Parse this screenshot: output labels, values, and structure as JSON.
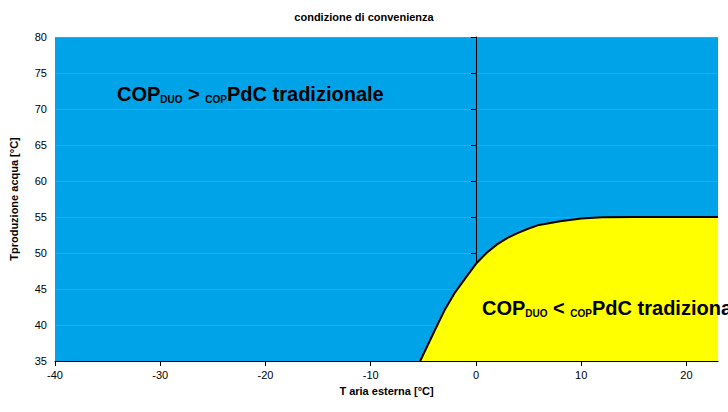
{
  "chart_data": {
    "type": "area",
    "title": "condizione di convenienza",
    "x_label": "T aria esterna [°C]",
    "y_label": "Tproduzione acqua [°C]",
    "x": [
      -5.3,
      -4,
      -3,
      -2,
      -1,
      0,
      1,
      2,
      3,
      4,
      5,
      6,
      8,
      10,
      12,
      15,
      18,
      23
    ],
    "values": [
      35,
      39,
      42,
      44.5,
      46.5,
      48.5,
      50,
      51.2,
      52.1,
      52.8,
      53.4,
      53.9,
      54.4,
      54.8,
      54.95,
      55,
      55,
      55
    ],
    "color": "#ffff00",
    "xlim": [
      -40,
      23
    ],
    "xticks": [
      -40,
      -30,
      -20,
      -10,
      0,
      10,
      20
    ],
    "ylim": [
      35,
      80
    ],
    "yticks": [
      35,
      40,
      45,
      50,
      55,
      60,
      65,
      70,
      75,
      80
    ],
    "grid": true,
    "annotations": [
      [
        "COP",
        "DUO",
        " > ",
        "COP",
        "PdC tradizionale"
      ],
      [
        "COP",
        "DUO",
        " < ",
        "COP",
        "PdC tradizionale"
      ]
    ]
  }
}
